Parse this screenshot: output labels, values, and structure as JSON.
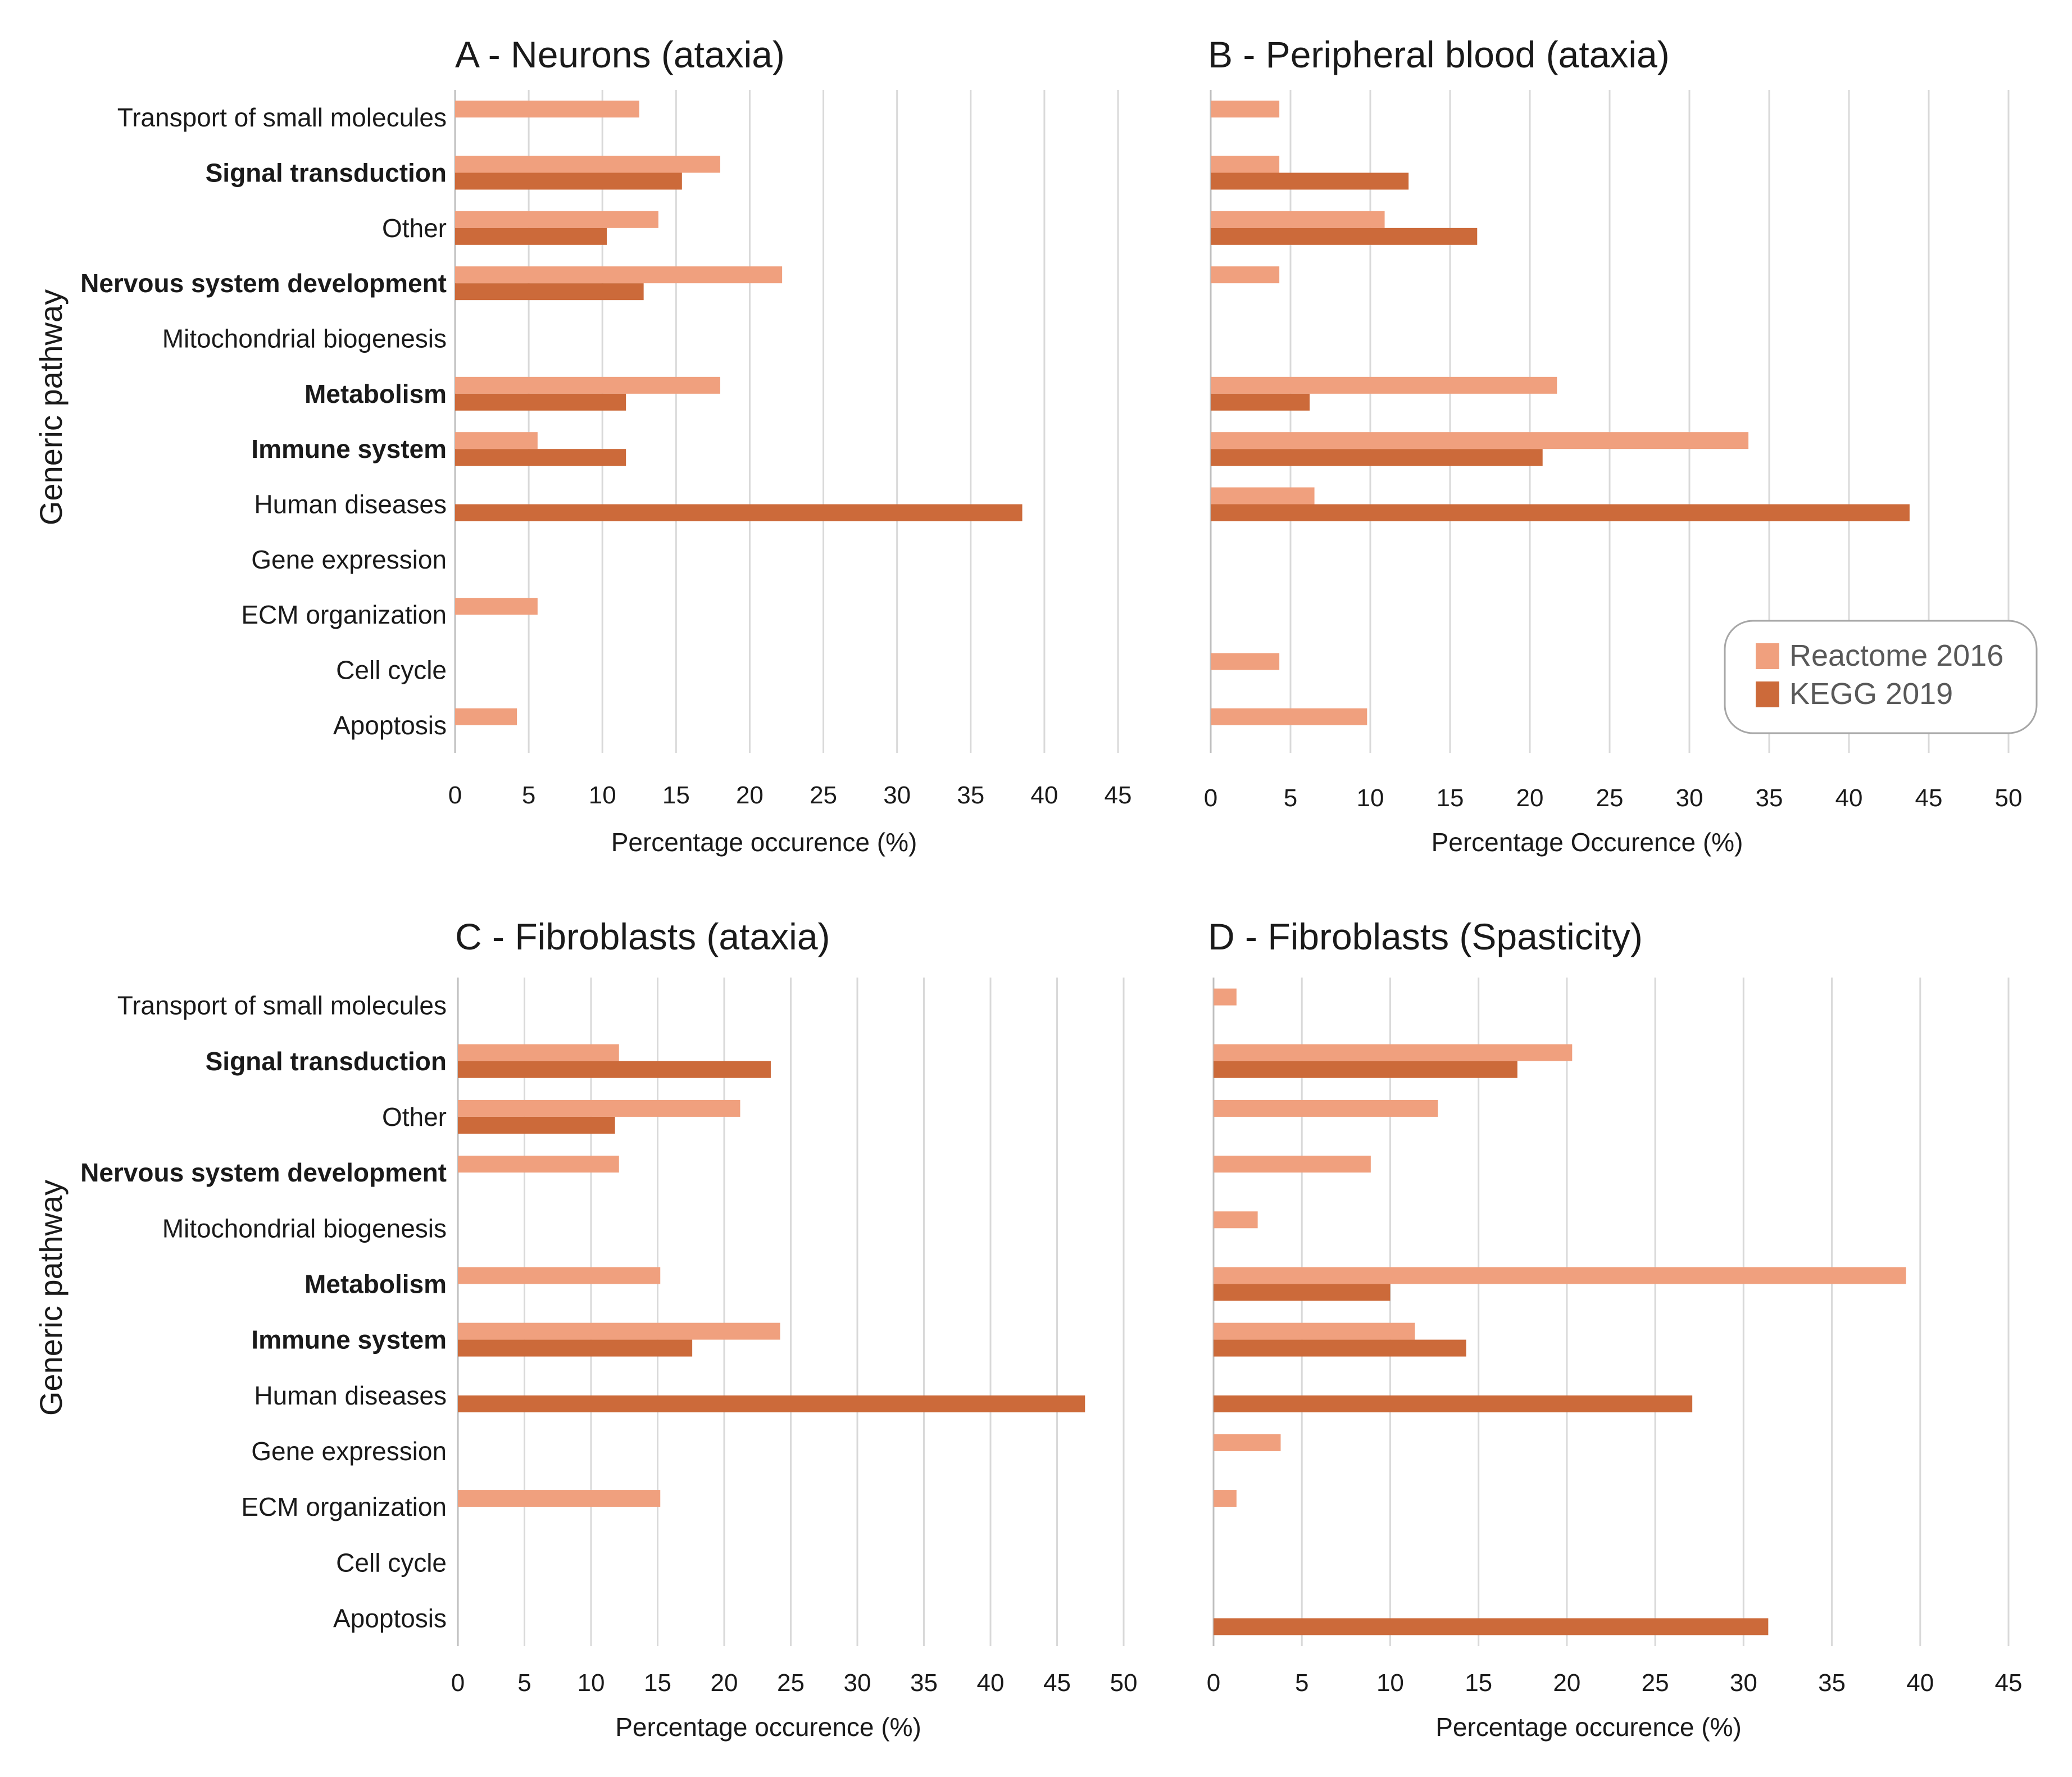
{
  "colors": {
    "reactome": "#F0A07E",
    "kegg": "#CC6A3A",
    "grid": "#D9D9D9",
    "axis": "#BFBFBF",
    "legend_border": "#A6A6A6"
  },
  "legend": {
    "items": [
      {
        "label": "Reactome 2016",
        "color": "#F0A07E"
      },
      {
        "label": "KEGG 2019",
        "color": "#CC6A3A"
      }
    ],
    "position": "right, lower part of panel B"
  },
  "chart_data": [
    {
      "id": "A",
      "type": "bar",
      "orientation": "horizontal",
      "title": "A - Neurons (ataxia)",
      "xlabel": "Percentage occurence (%)",
      "ylabel": "Generic pathway",
      "xlim": [
        0,
        45
      ],
      "xticks": [
        0,
        5,
        10,
        15,
        20,
        25,
        30,
        35,
        40,
        45
      ],
      "categories": [
        "Transport of small molecules",
        "Signal transduction",
        "Other",
        "Nervous system development",
        "Mitochondrial biogenesis",
        "Metabolism",
        "Immune system",
        "Human diseases",
        "Gene expression",
        "ECM organization",
        "Cell cycle",
        "Apoptosis"
      ],
      "bold_categories": [
        "Signal transduction",
        "Nervous system development",
        "Metabolism",
        "Immune system"
      ],
      "series": [
        {
          "name": "Reactome 2016",
          "values": [
            12.5,
            18.0,
            13.8,
            22.2,
            0,
            18.0,
            5.6,
            0,
            0,
            5.6,
            0,
            4.2
          ]
        },
        {
          "name": "KEGG 2019",
          "values": [
            0,
            15.4,
            10.3,
            12.8,
            0,
            11.6,
            11.6,
            38.5,
            0,
            0,
            0,
            0
          ]
        }
      ]
    },
    {
      "id": "B",
      "type": "bar",
      "orientation": "horizontal",
      "title": "B - Peripheral blood (ataxia)",
      "xlabel": "Percentage Occurence (%)",
      "ylabel": "",
      "xlim": [
        0,
        50
      ],
      "xticks": [
        0,
        5,
        10,
        15,
        20,
        25,
        30,
        35,
        40,
        45,
        50
      ],
      "categories": [
        "Transport of small molecules",
        "Signal transduction",
        "Other",
        "Nervous system development",
        "Mitochondrial biogenesis",
        "Metabolism",
        "Immune system",
        "Human diseases",
        "Gene expression",
        "ECM organization",
        "Cell cycle",
        "Apoptosis"
      ],
      "series": [
        {
          "name": "Reactome 2016",
          "values": [
            4.3,
            4.3,
            10.9,
            4.3,
            0,
            21.7,
            33.7,
            6.5,
            0,
            0,
            4.3,
            9.8
          ]
        },
        {
          "name": "KEGG 2019",
          "values": [
            0,
            12.4,
            16.7,
            0,
            0,
            6.2,
            20.8,
            43.8,
            0,
            0,
            0,
            0
          ]
        }
      ]
    },
    {
      "id": "C",
      "type": "bar",
      "orientation": "horizontal",
      "title": "C - Fibroblasts (ataxia)",
      "xlabel": "Percentage occurence (%)",
      "ylabel": "Generic pathway",
      "xlim": [
        0,
        50
      ],
      "xticks": [
        0,
        5,
        10,
        15,
        20,
        25,
        30,
        35,
        40,
        45,
        50
      ],
      "categories": [
        "Transport of small molecules",
        "Signal transduction",
        "Other",
        "Nervous system development",
        "Mitochondrial biogenesis",
        "Metabolism",
        "Immune system",
        "Human diseases",
        "Gene expression",
        "ECM organization",
        "Cell cycle",
        "Apoptosis"
      ],
      "bold_categories": [
        "Signal transduction",
        "Nervous system development",
        "Metabolism",
        "Immune system"
      ],
      "series": [
        {
          "name": "Reactome 2016",
          "values": [
            0,
            12.1,
            21.2,
            12.1,
            0,
            15.2,
            24.2,
            0,
            0,
            15.2,
            0,
            0
          ]
        },
        {
          "name": "KEGG 2019",
          "values": [
            0,
            23.5,
            11.8,
            0,
            0,
            0,
            17.6,
            47.1,
            0,
            0,
            0,
            0
          ]
        }
      ]
    },
    {
      "id": "D",
      "type": "bar",
      "orientation": "horizontal",
      "title": "D - Fibroblasts (Spasticity)",
      "xlabel": "Percentage occurence (%)",
      "ylabel": "",
      "xlim": [
        0,
        45
      ],
      "xticks": [
        0,
        5,
        10,
        15,
        20,
        25,
        30,
        35,
        40,
        45
      ],
      "categories": [
        "Transport of small molecules",
        "Signal transduction",
        "Other",
        "Nervous system development",
        "Mitochondrial biogenesis",
        "Metabolism",
        "Immune system",
        "Human diseases",
        "Gene expression",
        "ECM organization",
        "Cell cycle",
        "Apoptosis"
      ],
      "series": [
        {
          "name": "Reactome 2016",
          "values": [
            1.3,
            20.3,
            12.7,
            8.9,
            2.5,
            39.2,
            11.4,
            0,
            3.8,
            1.3,
            0,
            0
          ]
        },
        {
          "name": "KEGG 2019",
          "values": [
            0,
            17.2,
            0,
            0,
            0,
            10.0,
            14.3,
            27.1,
            0,
            0,
            0,
            31.4
          ]
        }
      ]
    }
  ]
}
